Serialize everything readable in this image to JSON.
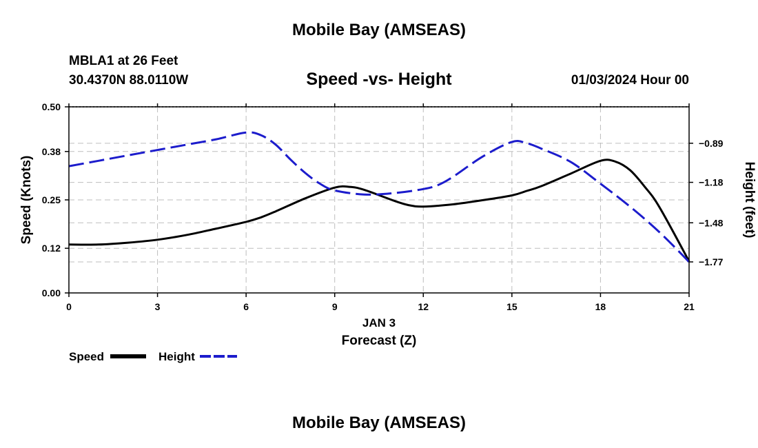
{
  "header": {
    "top_title": "Mobile Bay (AMSEAS)",
    "station": "MBLA1 at 26 Feet",
    "coords": "30.4370N  88.0110W",
    "chart_title": "Speed -vs- Height",
    "date": "01/03/2024 Hour 00"
  },
  "footer": {
    "bottom_title": "Mobile Bay (AMSEAS)"
  },
  "chart_data": {
    "type": "line",
    "title": "Speed -vs- Height",
    "xlabel": "Forecast (Z)",
    "xsublabel": "JAN 3",
    "ylabel_left": "Speed (Knots)",
    "ylabel_right": "Height (feet)",
    "x_ticks": [
      "0",
      "3",
      "6",
      "9",
      "12",
      "15",
      "18",
      "21"
    ],
    "x_range": [
      0,
      21
    ],
    "y_left_ticks": [
      "0.00",
      "0.12",
      "0.25",
      "0.38",
      "0.50"
    ],
    "y_left_range": [
      0,
      0.5
    ],
    "y_right_ticks": [
      "-0.89",
      "-1.18",
      "-1.48",
      "-1.77"
    ],
    "y_right_range": [
      -2.0,
      -0.62
    ],
    "grid": true,
    "legend_position": "bottom-left",
    "series": [
      {
        "name": "Speed",
        "axis": "left",
        "color": "#000000",
        "style": "solid",
        "x": [
          0,
          1,
          2,
          3,
          4,
          5,
          6,
          6.5,
          7,
          8,
          9,
          9.5,
          10,
          11,
          11.5,
          12,
          13,
          14,
          15,
          15.5,
          16,
          17,
          18,
          18.5,
          19,
          19.5,
          20,
          21
        ],
        "values": [
          0.13,
          0.13,
          0.135,
          0.143,
          0.156,
          0.173,
          0.191,
          0.203,
          0.219,
          0.254,
          0.283,
          0.285,
          0.277,
          0.248,
          0.236,
          0.232,
          0.238,
          0.249,
          0.262,
          0.274,
          0.287,
          0.321,
          0.355,
          0.353,
          0.33,
          0.285,
          0.23,
          0.085
        ]
      },
      {
        "name": "Height",
        "axis": "right",
        "color": "#1c1ccc",
        "style": "dashed",
        "x": [
          0,
          1,
          2,
          3,
          4,
          5,
          6,
          6.5,
          7,
          7.5,
          8,
          8.5,
          9,
          10,
          11,
          12,
          12.5,
          13,
          14,
          15,
          15.5,
          16,
          17,
          18,
          19,
          20,
          21
        ],
        "values": [
          -1.06,
          -1.02,
          -0.98,
          -0.94,
          -0.9,
          -0.86,
          -0.81,
          -0.83,
          -0.9,
          -1.01,
          -1.11,
          -1.19,
          -1.24,
          -1.27,
          -1.26,
          -1.23,
          -1.2,
          -1.14,
          -0.99,
          -0.88,
          -0.89,
          -0.93,
          -1.03,
          -1.19,
          -1.36,
          -1.55,
          -1.77
        ]
      }
    ]
  }
}
